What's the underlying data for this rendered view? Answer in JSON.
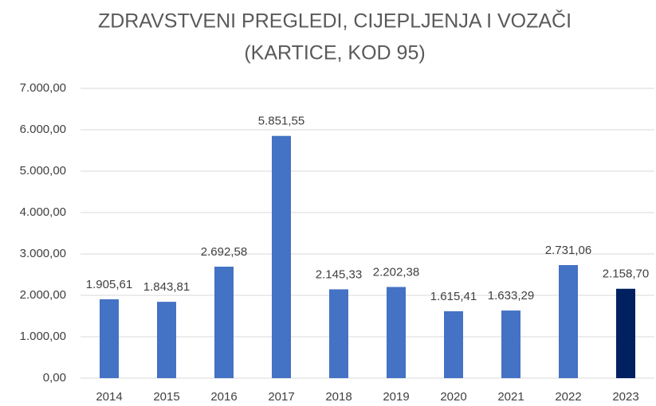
{
  "chart_data": {
    "type": "bar",
    "title": [
      "ZDRAVSTVENI PREGLEDI, CIJEPLJENJA I VOZAČI",
      "(KARTICE, KOD 95)"
    ],
    "categories": [
      "2014",
      "2015",
      "2016",
      "2017",
      "2018",
      "2019",
      "2020",
      "2021",
      "2022",
      "2023"
    ],
    "values": [
      1905.61,
      1843.81,
      2692.58,
      5851.55,
      2145.33,
      2202.38,
      1615.41,
      1633.29,
      2731.06,
      2158.7
    ],
    "value_labels": [
      "1.905,61",
      "1.843,81",
      "2.692,58",
      "5.851,55",
      "2.145,33",
      "2.202,38",
      "1.615,41",
      "1.633,29",
      "2.731,06",
      "2.158,70"
    ],
    "colors": [
      "#4472c4",
      "#4472c4",
      "#4472c4",
      "#4472c4",
      "#4472c4",
      "#4472c4",
      "#4472c4",
      "#4472c4",
      "#4472c4",
      "#002060"
    ],
    "ylim": [
      0,
      7000
    ],
    "yticks": [
      {
        "value": 0,
        "label": "0,00"
      },
      {
        "value": 1000,
        "label": "1.000,00"
      },
      {
        "value": 2000,
        "label": "2.000,00"
      },
      {
        "value": 3000,
        "label": "3.000,00"
      },
      {
        "value": 4000,
        "label": "4.000,00"
      },
      {
        "value": 5000,
        "label": "5.000,00"
      },
      {
        "value": 6000,
        "label": "6.000,00"
      },
      {
        "value": 7000,
        "label": "7.000,00"
      }
    ],
    "grid": true
  }
}
